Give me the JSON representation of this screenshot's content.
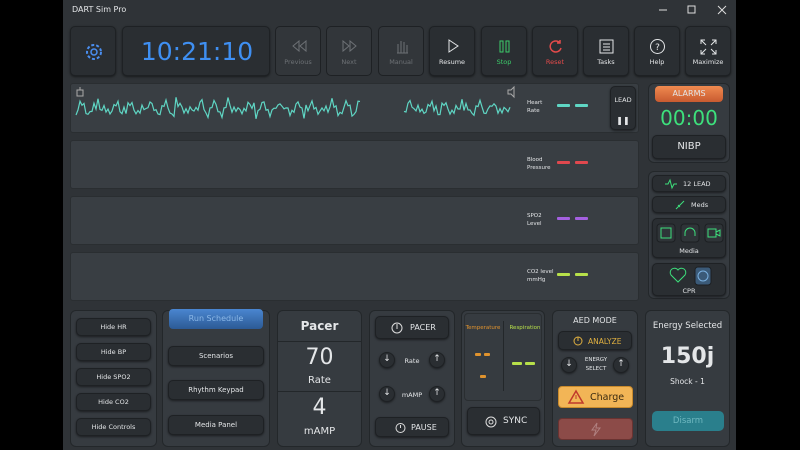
{
  "window": {
    "title": "DART Sim Pro"
  },
  "toolbar": {
    "clock": "10:21:10",
    "buttons": [
      "Previous",
      "Next",
      "Manual",
      "Resume",
      "Stop",
      "Reset",
      "Tasks",
      "Help",
      "Maximize"
    ]
  },
  "monitor": {
    "lead_button": "LEAD",
    "channels": [
      [
        "Heart",
        "Rate"
      ],
      [
        "Blood",
        "Pressure"
      ],
      [
        "SPO2",
        "Level"
      ],
      [
        "CO2 level",
        "mmHg"
      ]
    ]
  },
  "alarms": {
    "tab": "ALARMS",
    "timer": "00:00",
    "button": "NIBP"
  },
  "side_panel": {
    "twelve_lead": "12 LEAD",
    "meds": "Meds",
    "media": "Media",
    "cpr": "CPR"
  },
  "hide_panel": [
    "Hide HR",
    "Hide BP",
    "Hide SPO2",
    "Hide CO2",
    "Hide Controls"
  ],
  "schedule_panel": {
    "tab": "Run Schedule",
    "buttons": [
      "Scenarios",
      "Rhythm Keypad",
      "Media Panel"
    ]
  },
  "pacer_display": {
    "title": "Pacer",
    "rate": 70,
    "rate_label": "Rate",
    "current": 4,
    "current_label": "mAMP"
  },
  "pacer_controls": {
    "pacer": "PACER",
    "rate": "Rate",
    "current": "mAMP",
    "pause": "PAUSE"
  },
  "vitals_panel": {
    "temperature": "Temperature",
    "respiration": "Respiration",
    "sync": "SYNC"
  },
  "aed": {
    "title": "AED MODE",
    "analyze": "ANALYZE",
    "energy_select": [
      "ENERGY",
      "SELECT"
    ],
    "charge": "Charge"
  },
  "energy": {
    "title": "Energy Selected",
    "value": "150j",
    "shock": "Shock - 1",
    "disarm": "Disarm"
  }
}
